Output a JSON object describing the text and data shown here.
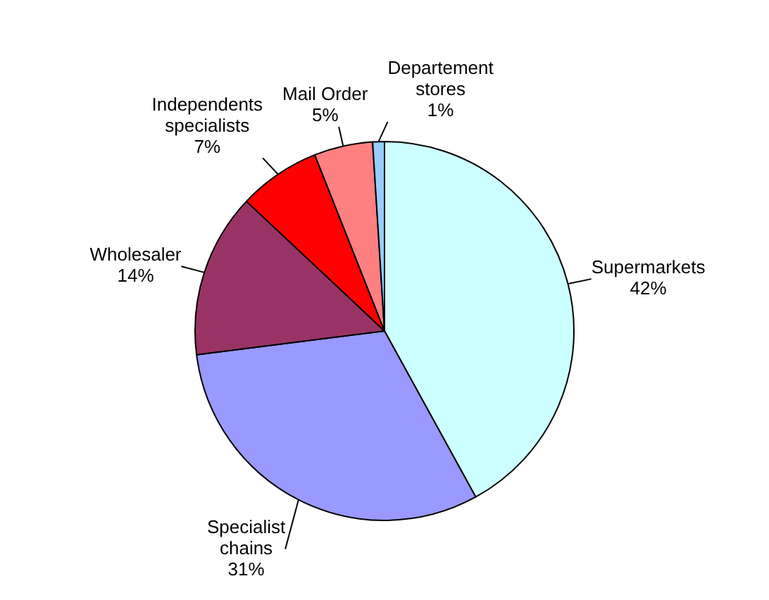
{
  "chart_data": {
    "type": "pie",
    "categories": [
      "Supermarkets",
      "Specialist chains",
      "Wholesaler",
      "Independents specialists",
      "Mail Order",
      "Departement stores"
    ],
    "values": [
      42,
      31,
      14,
      7,
      5,
      1
    ],
    "value_labels": [
      "42%",
      "31%",
      "14%",
      "7%",
      "5%",
      "1%"
    ],
    "colors": [
      "#ccffff",
      "#9999ff",
      "#993366",
      "#ff0000",
      "#ff8080",
      "#99ccff"
    ],
    "legend": false
  }
}
